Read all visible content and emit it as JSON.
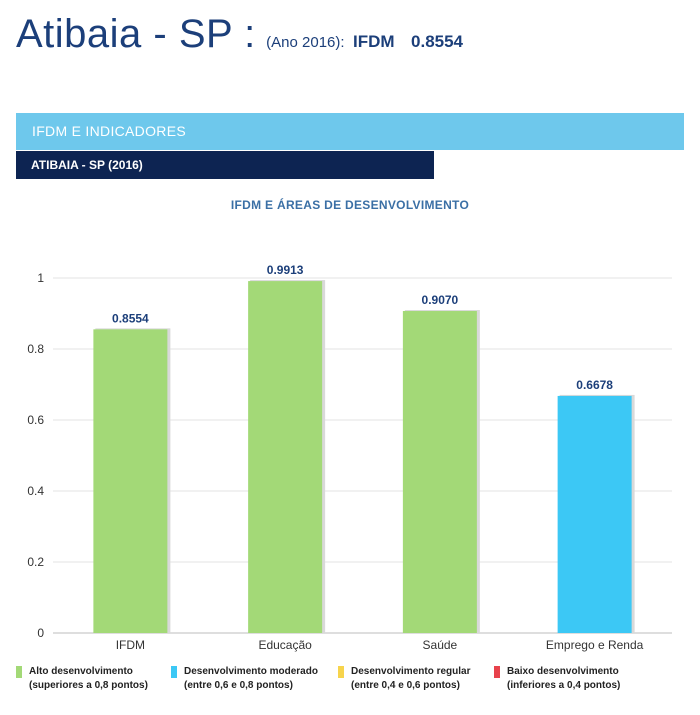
{
  "header": {
    "city": "Atibaia - SP :",
    "year": "(Ano 2016):",
    "ifdm_label": "IFDM",
    "ifdm_value": "0.8554"
  },
  "section": {
    "title": "IFDM E INDICADORES",
    "subtitle": "ATIBAIA - SP (2016)"
  },
  "colors": {
    "alto": "#a3d977",
    "moderado": "#3cc8f5",
    "regular": "#f7d44c",
    "baixo": "#e8424c"
  },
  "legend": [
    {
      "line1": "Alto desenvolvimento",
      "line2": "(superiores a 0,8 pontos)",
      "color": "#a3d977"
    },
    {
      "line1": "Desenvolvimento moderado",
      "line2": "(entre 0,6 e 0,8 pontos)",
      "color": "#3cc8f5"
    },
    {
      "line1": "Desenvolvimento regular",
      "line2": "(entre 0,4 e 0,6 pontos)",
      "color": "#f7d44c"
    },
    {
      "line1": "Baixo desenvolvimento",
      "line2": "(inferiores a 0,4 pontos)",
      "color": "#e8424c"
    }
  ],
  "chart_data": {
    "type": "bar",
    "title": "IFDM E ÁREAS DE DESENVOLVIMENTO",
    "categories": [
      "IFDM",
      "Educação",
      "Saúde",
      "Emprego e Renda"
    ],
    "values": [
      0.8554,
      0.9913,
      0.907,
      0.6678
    ],
    "value_labels": [
      "0.8554",
      "0.9913",
      "0.9070",
      "0.6678"
    ],
    "bar_colors": [
      "#a3d977",
      "#a3d977",
      "#a3d977",
      "#3cc8f5"
    ],
    "yticks": [
      0,
      0.2,
      0.4,
      0.6,
      0.8,
      1
    ],
    "ytick_labels": [
      "0",
      "0.2",
      "0.4",
      "0.6",
      "0.8",
      "1"
    ],
    "ylim": [
      0,
      1.1
    ],
    "xlabel": "",
    "ylabel": "",
    "grid": true
  }
}
